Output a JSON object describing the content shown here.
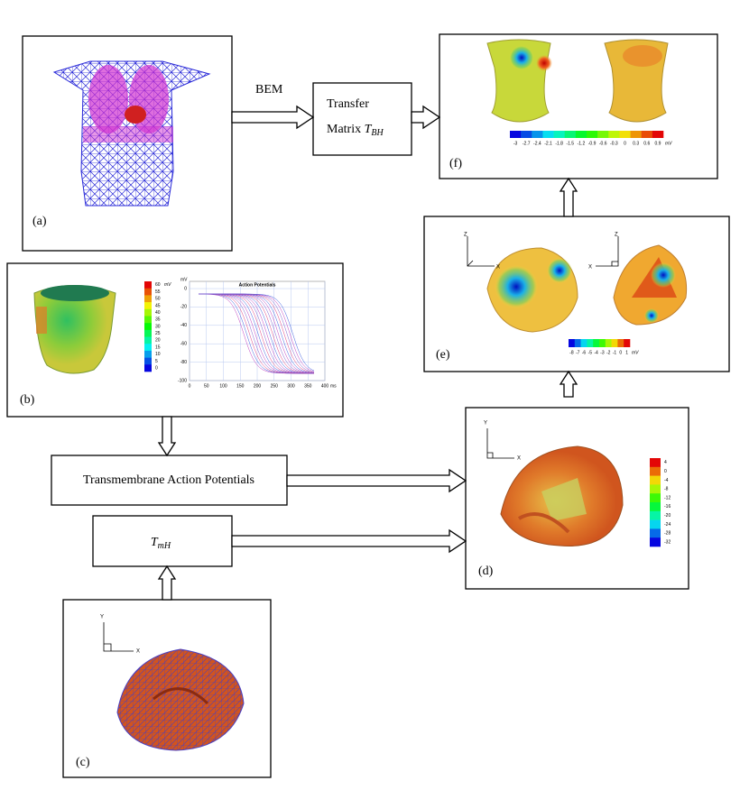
{
  "panels": {
    "a": "(a)",
    "b": "(b)",
    "c": "(c)",
    "d": "(d)",
    "e": "(e)",
    "f": "(f)"
  },
  "bem": "BEM",
  "transfer_matrix": {
    "line1": "Transfer",
    "line2": "Matrix",
    "symbol": "T",
    "subscript": "BH"
  },
  "transmembrane": "Transmembrane Action Potentials",
  "tmh": {
    "symbol": "T",
    "subscript": "mH"
  },
  "colorbar_f": {
    "labels": [
      "-3",
      "-2.7",
      "-2.4",
      "-2.1",
      "-1.8",
      "-1.5",
      "-1.2",
      "-0.9",
      "-0.6",
      "-0.3",
      "0",
      "0.3",
      "0.6",
      "0.9"
    ],
    "unit": "mV"
  },
  "colorbar_e": {
    "labels": [
      "-8",
      "-7",
      "-6",
      "-5",
      "-4",
      "-3",
      "-2",
      "-1",
      "0",
      "1"
    ],
    "unit": "mV"
  },
  "colorbar_d": {
    "labels": [
      "4",
      "0",
      "-4",
      "-8",
      "-12",
      "-16",
      "-20",
      "-24",
      "-28",
      "-32"
    ]
  },
  "colorbar_b": {
    "labels": [
      "60",
      "55",
      "50",
      "45",
      "40",
      "35",
      "30",
      "25",
      "20",
      "15",
      "10",
      "5",
      "0"
    ],
    "unit": "mV"
  },
  "ap_plot": {
    "title": "Action Potentials",
    "y_unit": "mV",
    "yticks": [
      "0",
      "-20",
      "-40",
      "-60",
      "-80",
      "-100"
    ],
    "xticks": [
      "0",
      "50",
      "100",
      "150",
      "200",
      "250",
      "300",
      "350",
      "400"
    ],
    "x_unit": "ms"
  },
  "axes": {
    "x": "X",
    "y": "Y",
    "z": "Z"
  }
}
